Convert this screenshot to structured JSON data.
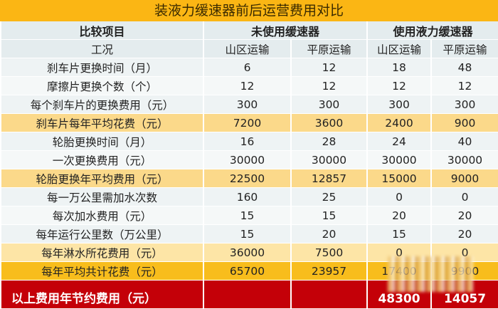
{
  "title": "装液力缓速器前后运营费用对比",
  "header": {
    "item_label": "比较项目",
    "group_without": "未使用缓速器",
    "group_with": "使用液力缓速器",
    "condition_label": "工况",
    "conditions": [
      "山区运输",
      "平原运输",
      "山区运输",
      "平原运输"
    ]
  },
  "rows": [
    {
      "label": "刹车片更换时间（月）",
      "values": [
        "6",
        "12",
        "18",
        "48"
      ],
      "style": "r0"
    },
    {
      "label": "摩擦片更换个数（个）",
      "values": [
        "12",
        "12",
        "12",
        "12"
      ],
      "style": "r1"
    },
    {
      "label": "每个刹车片的更换费用（元）",
      "values": [
        "300",
        "300",
        "300",
        "300"
      ],
      "style": "r0"
    },
    {
      "label": "刹车片每年平均花费（元）",
      "values": [
        "7200",
        "3600",
        "2400",
        "900"
      ],
      "style": "hl"
    },
    {
      "label": "轮胎更换时间（月）",
      "values": [
        "16",
        "28",
        "24",
        "40"
      ],
      "style": "r0"
    },
    {
      "label": "一次更换费用（元）",
      "values": [
        "30000",
        "30000",
        "30000",
        "30000"
      ],
      "style": "r1"
    },
    {
      "label": "轮胎更换年平均费用（元）",
      "values": [
        "22500",
        "12857",
        "15000",
        "9000"
      ],
      "style": "hl"
    },
    {
      "label": "每一万公里需加水次数",
      "values": [
        "160",
        "25",
        "0",
        "0"
      ],
      "style": "r0"
    },
    {
      "label": "每次加水费用（元）",
      "values": [
        "15",
        "15",
        "20",
        "20"
      ],
      "style": "r1"
    },
    {
      "label": "每年运行公里数（万公里）",
      "values": [
        "15",
        "20",
        "15",
        "20"
      ],
      "style": "r0"
    },
    {
      "label": "每年淋水所花费用（元）",
      "values": [
        "36000",
        "7500",
        "0",
        "0"
      ],
      "style": "hl-light"
    },
    {
      "label": "每年平均共计花费（元）",
      "values": [
        "65700",
        "23957",
        "17400",
        "9900"
      ],
      "style": "orange"
    }
  ],
  "savings": {
    "label": "以上费用年节约费用（元）",
    "values": [
      "",
      "",
      "48300",
      "14057"
    ]
  },
  "colors": {
    "title_bar": "#fbb614",
    "highlight": "#fbd98a",
    "total_row": "#f8bd1c",
    "savings_row": "#c40008"
  }
}
